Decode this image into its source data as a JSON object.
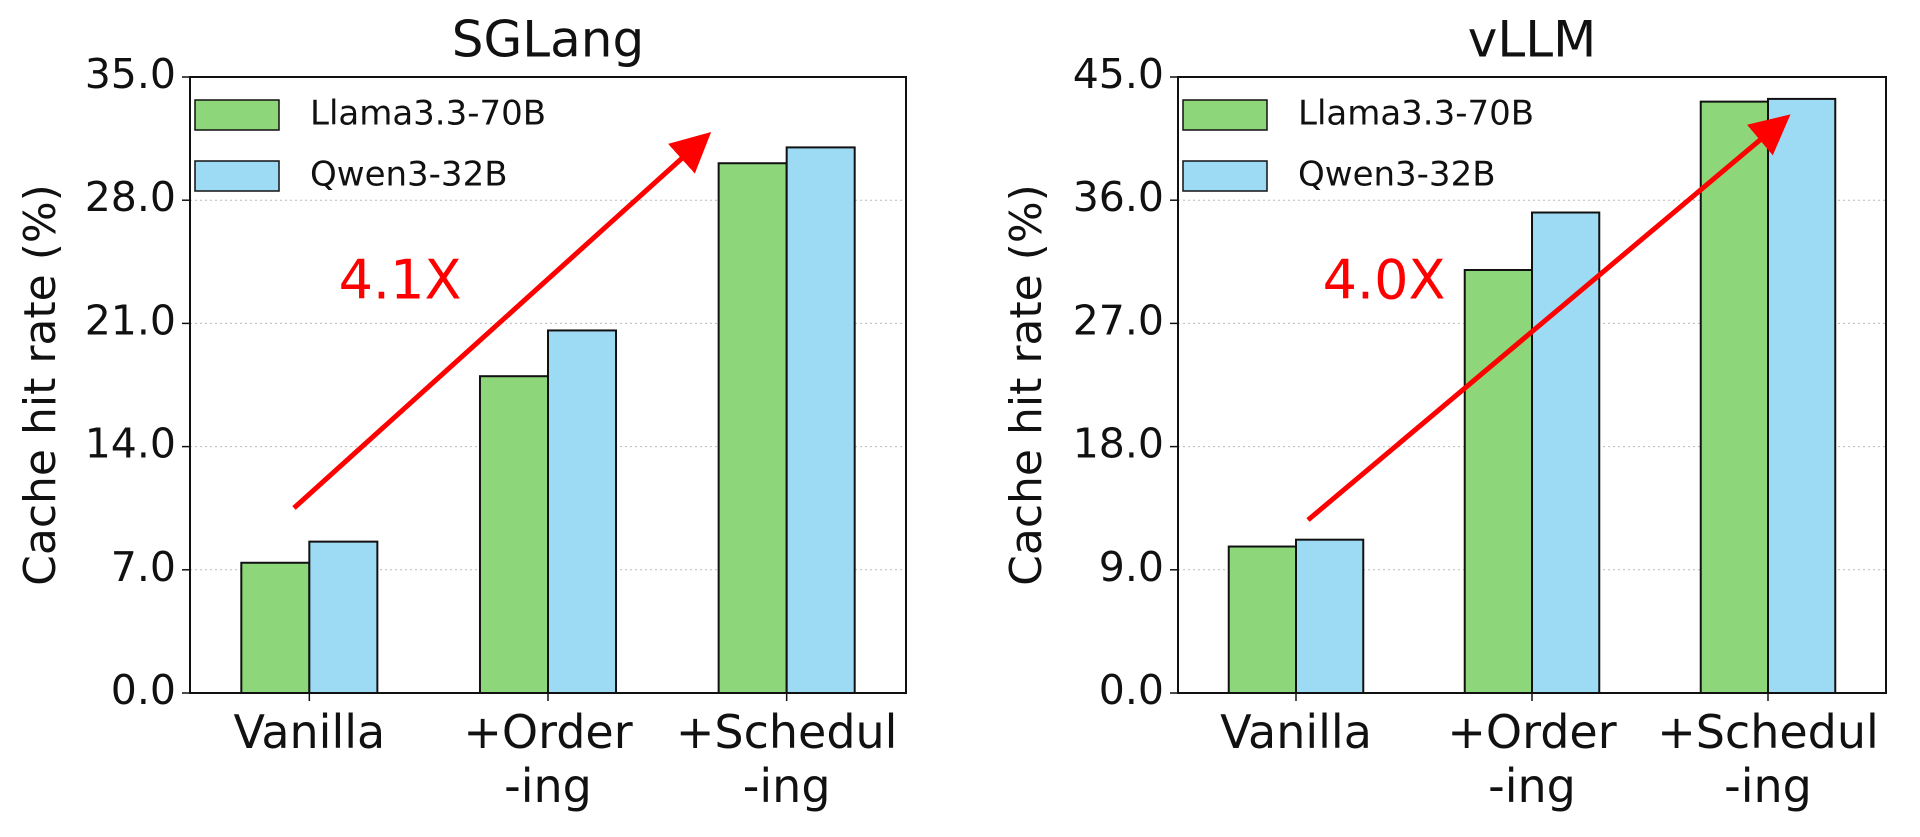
{
  "chart_data": [
    {
      "type": "bar",
      "title": "SGLang",
      "y_label": "Cache hit rate (%)",
      "categories": [
        "Vanilla",
        "+Order\n-ing",
        "+Schedul\n-ing"
      ],
      "series": [
        {
          "name": "Llama3.3-70B",
          "color": "#8dd67a",
          "values": [
            7.4,
            18.0,
            30.1
          ]
        },
        {
          "name": "Qwen3-32B",
          "color": "#9ddbf5",
          "values": [
            8.6,
            20.6,
            31.0
          ]
        }
      ],
      "ylim": [
        0,
        35
      ],
      "yticks": [
        {
          "value": 0,
          "label": "0.0"
        },
        {
          "value": 7,
          "label": "7.0"
        },
        {
          "value": 14,
          "label": "14.0"
        },
        {
          "value": 21,
          "label": "21.0"
        },
        {
          "value": 28,
          "label": "28.0"
        },
        {
          "value": 35,
          "label": "35.0"
        }
      ],
      "grid": true,
      "legend": "upper left",
      "annotation": "4.1X"
    },
    {
      "type": "bar",
      "title": "vLLM",
      "y_label": "Cache hit rate (%)",
      "categories": [
        "Vanilla",
        "+Order\n-ing",
        "+Schedul\n-ing"
      ],
      "series": [
        {
          "name": "Llama3.3-70B",
          "color": "#8dd67a",
          "values": [
            10.7,
            30.9,
            43.2
          ]
        },
        {
          "name": "Qwen3-32B",
          "color": "#9ddbf5",
          "values": [
            11.2,
            35.1,
            43.4
          ]
        }
      ],
      "ylim": [
        0,
        45
      ],
      "yticks": [
        {
          "value": 0,
          "label": "0.0"
        },
        {
          "value": 9,
          "label": "9.0"
        },
        {
          "value": 18,
          "label": "18.0"
        },
        {
          "value": 27,
          "label": "27.0"
        },
        {
          "value": 36,
          "label": "36.0"
        },
        {
          "value": 45,
          "label": "45.0"
        }
      ],
      "grid": true,
      "legend": "upper left",
      "annotation": "4.0X"
    }
  ]
}
